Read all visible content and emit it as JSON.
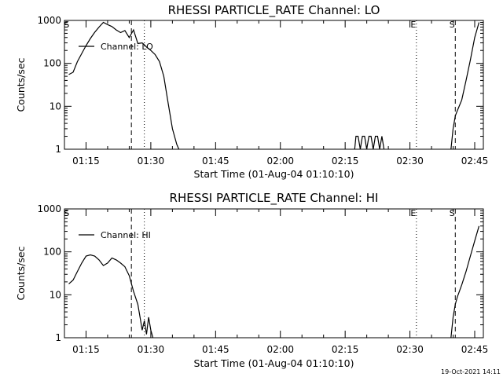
{
  "timestamp": "19-Oct-2021 14:11",
  "chart_data": [
    {
      "type": "line",
      "title": "RHESSI PARTICLE_RATE Channel: LO",
      "xlabel": "Start Time (01-Aug-04 01:10:10)",
      "ylabel": "Counts/sec",
      "y_scale": "log",
      "ylim": [
        1,
        1000
      ],
      "y_ticks": [
        "1",
        "10",
        "100",
        "1000"
      ],
      "xlim_minutes": [
        70,
        167
      ],
      "x_ticks": [
        "01:15",
        "01:30",
        "01:45",
        "02:00",
        "02:15",
        "02:30",
        "02:45"
      ],
      "legend_position": "top-left",
      "series": [
        {
          "name": "Channel: LO",
          "x_minutes": [
            71,
            72,
            73,
            74,
            75,
            76,
            77,
            78,
            79,
            80,
            81,
            82,
            83,
            84,
            85,
            86,
            87,
            88,
            88.5,
            89,
            89.5,
            90,
            91,
            92,
            93,
            94,
            95,
            96,
            96.5
          ],
          "values": [
            55,
            62,
            110,
            170,
            260,
            380,
            530,
            700,
            900,
            800,
            720,
            600,
            520,
            580,
            400,
            600,
            290,
            300,
            270,
            240,
            220,
            200,
            160,
            110,
            50,
            12,
            3,
            1.3,
            1
          ]
        },
        {
          "name": "",
          "x_minutes": [
            137.2,
            137.5,
            138,
            138.5,
            139,
            139.5,
            140,
            140.5,
            141,
            141.5,
            142,
            142.5,
            143,
            143.5,
            144
          ],
          "values": [
            1,
            2,
            2,
            1,
            2,
            2,
            1,
            2,
            2,
            1,
            2,
            2,
            1,
            2,
            1
          ]
        },
        {
          "name": "",
          "x_minutes": [
            159.5,
            160,
            160.5,
            161,
            162,
            163,
            164,
            165,
            166
          ],
          "values": [
            1,
            3,
            6,
            8,
            14,
            40,
            120,
            400,
            900
          ]
        }
      ],
      "markers": [
        {
          "label": "S",
          "minute": 70.5,
          "style": "none"
        },
        {
          "label": "",
          "minute": 85.5,
          "style": "dashed"
        },
        {
          "label": "",
          "minute": 88.5,
          "style": "dotted"
        },
        {
          "label": "E",
          "minute": 151.5,
          "style": "dotted"
        },
        {
          "label": "S",
          "minute": 160.5,
          "style": "dashed"
        },
        {
          "label": "",
          "minute": 167,
          "style": "dashdot"
        }
      ]
    },
    {
      "type": "line",
      "title": "RHESSI PARTICLE_RATE Channel: HI",
      "xlabel": "Start Time (01-Aug-04 01:10:10)",
      "ylabel": "Counts/sec",
      "y_scale": "log",
      "ylim": [
        1,
        1000
      ],
      "y_ticks": [
        "1",
        "10",
        "100",
        "1000"
      ],
      "xlim_minutes": [
        70,
        167
      ],
      "x_ticks": [
        "01:15",
        "01:30",
        "01:45",
        "02:00",
        "02:15",
        "02:30",
        "02:45"
      ],
      "legend_position": "top-left",
      "series": [
        {
          "name": "Channel: HI",
          "x_minutes": [
            71,
            72,
            73,
            74,
            75,
            76,
            77,
            78,
            79,
            80,
            81,
            82,
            83,
            84,
            85,
            86,
            87,
            87.5,
            88,
            88.5,
            89,
            89.5,
            90,
            90.5
          ],
          "values": [
            18,
            22,
            35,
            55,
            80,
            85,
            80,
            65,
            48,
            55,
            72,
            65,
            55,
            45,
            28,
            12,
            6,
            3,
            1.5,
            2.5,
            1.2,
            3,
            1.5,
            1
          ]
        },
        {
          "name": "",
          "x_minutes": [
            159.5,
            160,
            160.5,
            161,
            162,
            163,
            164,
            165,
            166
          ],
          "values": [
            1,
            3,
            6,
            9,
            17,
            35,
            80,
            180,
            400
          ]
        }
      ],
      "markers": [
        {
          "label": "S",
          "minute": 70.5,
          "style": "none"
        },
        {
          "label": "",
          "minute": 85.5,
          "style": "dashed"
        },
        {
          "label": "",
          "minute": 88.5,
          "style": "dotted"
        },
        {
          "label": "E",
          "minute": 151.5,
          "style": "dotted"
        },
        {
          "label": "S",
          "minute": 160.5,
          "style": "dashed"
        },
        {
          "label": "",
          "minute": 167,
          "style": "dashdot"
        }
      ]
    }
  ]
}
